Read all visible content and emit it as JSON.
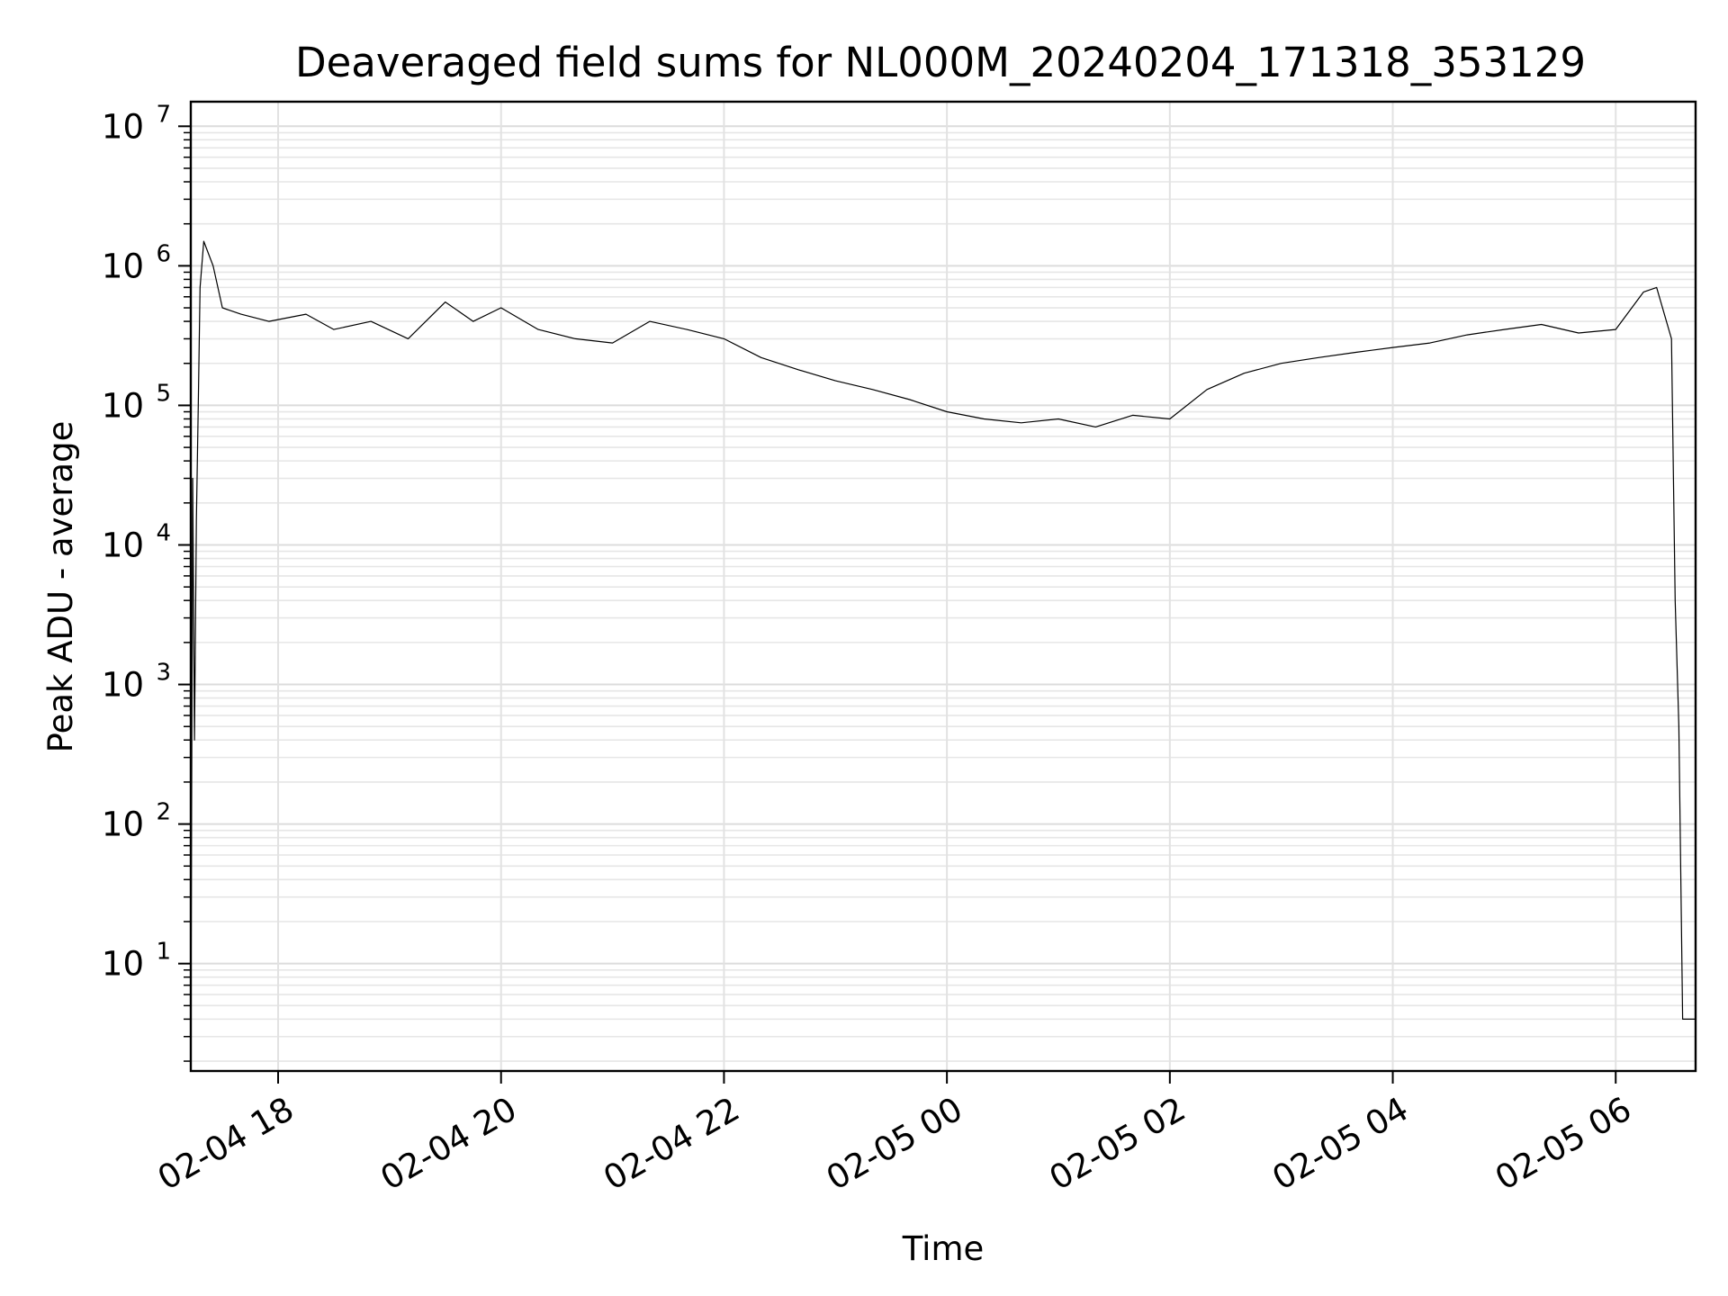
{
  "chart_data": {
    "type": "line",
    "title": "Deaveraged field sums for NL000M_20240204_171318_353129",
    "xlabel": "Time",
    "ylabel": "Peak ADU - average",
    "yscale": "log",
    "ylim": [
      1.7,
      15000000
    ],
    "xlim": [
      "2024-02-04 17:13",
      "2024-02-05 06:43"
    ],
    "grid": true,
    "series_color": "#000000",
    "x_ticks": [
      {
        "t": "2024-02-04 18:00",
        "label": "02-04 18"
      },
      {
        "t": "2024-02-04 20:00",
        "label": "02-04 20"
      },
      {
        "t": "2024-02-04 22:00",
        "label": "02-04 22"
      },
      {
        "t": "2024-02-05 00:00",
        "label": "02-05 00"
      },
      {
        "t": "2024-02-05 02:00",
        "label": "02-05 02"
      },
      {
        "t": "2024-02-05 04:00",
        "label": "02-05 04"
      },
      {
        "t": "2024-02-05 06:00",
        "label": "02-05 06"
      }
    ],
    "y_ticks": [
      {
        "value": 10,
        "base": "10",
        "exp": "1"
      },
      {
        "value": 100,
        "base": "10",
        "exp": "2"
      },
      {
        "value": 1000,
        "base": "10",
        "exp": "3"
      },
      {
        "value": 10000,
        "base": "10",
        "exp": "4"
      },
      {
        "value": 100000,
        "base": "10",
        "exp": "5"
      },
      {
        "value": 1000000,
        "base": "10",
        "exp": "6"
      },
      {
        "value": 10000000,
        "base": "10",
        "exp": "7"
      }
    ],
    "series": [
      {
        "x": [
          "2024-02-04 17:13",
          "2024-02-04 17:14",
          "2024-02-04 17:15",
          "2024-02-04 17:16",
          "2024-02-04 17:17",
          "2024-02-04 17:18",
          "2024-02-04 17:20",
          "2024-02-04 17:25",
          "2024-02-04 17:30",
          "2024-02-04 17:40",
          "2024-02-04 17:55",
          "2024-02-04 18:15",
          "2024-02-04 18:30",
          "2024-02-04 18:50",
          "2024-02-04 19:10",
          "2024-02-04 19:30",
          "2024-02-04 19:45",
          "2024-02-04 20:00",
          "2024-02-04 20:20",
          "2024-02-04 20:40",
          "2024-02-04 21:00",
          "2024-02-04 21:20",
          "2024-02-04 21:40",
          "2024-02-04 22:00",
          "2024-02-04 22:20",
          "2024-02-04 22:40",
          "2024-02-04 23:00",
          "2024-02-04 23:20",
          "2024-02-04 23:40",
          "2024-02-05 00:00",
          "2024-02-05 00:20",
          "2024-02-05 00:40",
          "2024-02-05 01:00",
          "2024-02-05 01:20",
          "2024-02-05 01:40",
          "2024-02-05 02:00",
          "2024-02-05 02:20",
          "2024-02-05 02:40",
          "2024-02-05 03:00",
          "2024-02-05 03:20",
          "2024-02-05 03:40",
          "2024-02-05 04:00",
          "2024-02-05 04:20",
          "2024-02-05 04:40",
          "2024-02-05 05:00",
          "2024-02-05 05:20",
          "2024-02-05 05:40",
          "2024-02-05 06:00",
          "2024-02-05 06:15",
          "2024-02-05 06:22",
          "2024-02-05 06:30",
          "2024-02-05 06:32",
          "2024-02-05 06:34",
          "2024-02-05 06:36",
          "2024-02-05 06:43"
        ],
        "y": [
          2,
          30000,
          400,
          15000,
          100000,
          700000,
          1500000,
          1000000,
          500000,
          450000,
          400000,
          450000,
          350000,
          400000,
          300000,
          550000,
          400000,
          500000,
          350000,
          300000,
          280000,
          400000,
          350000,
          300000,
          220000,
          180000,
          150000,
          130000,
          110000,
          90000,
          80000,
          75000,
          80000,
          70000,
          85000,
          80000,
          130000,
          170000,
          200000,
          220000,
          240000,
          260000,
          280000,
          320000,
          350000,
          380000,
          330000,
          350000,
          650000,
          700000,
          300000,
          4000,
          500,
          4,
          4
        ]
      }
    ]
  }
}
